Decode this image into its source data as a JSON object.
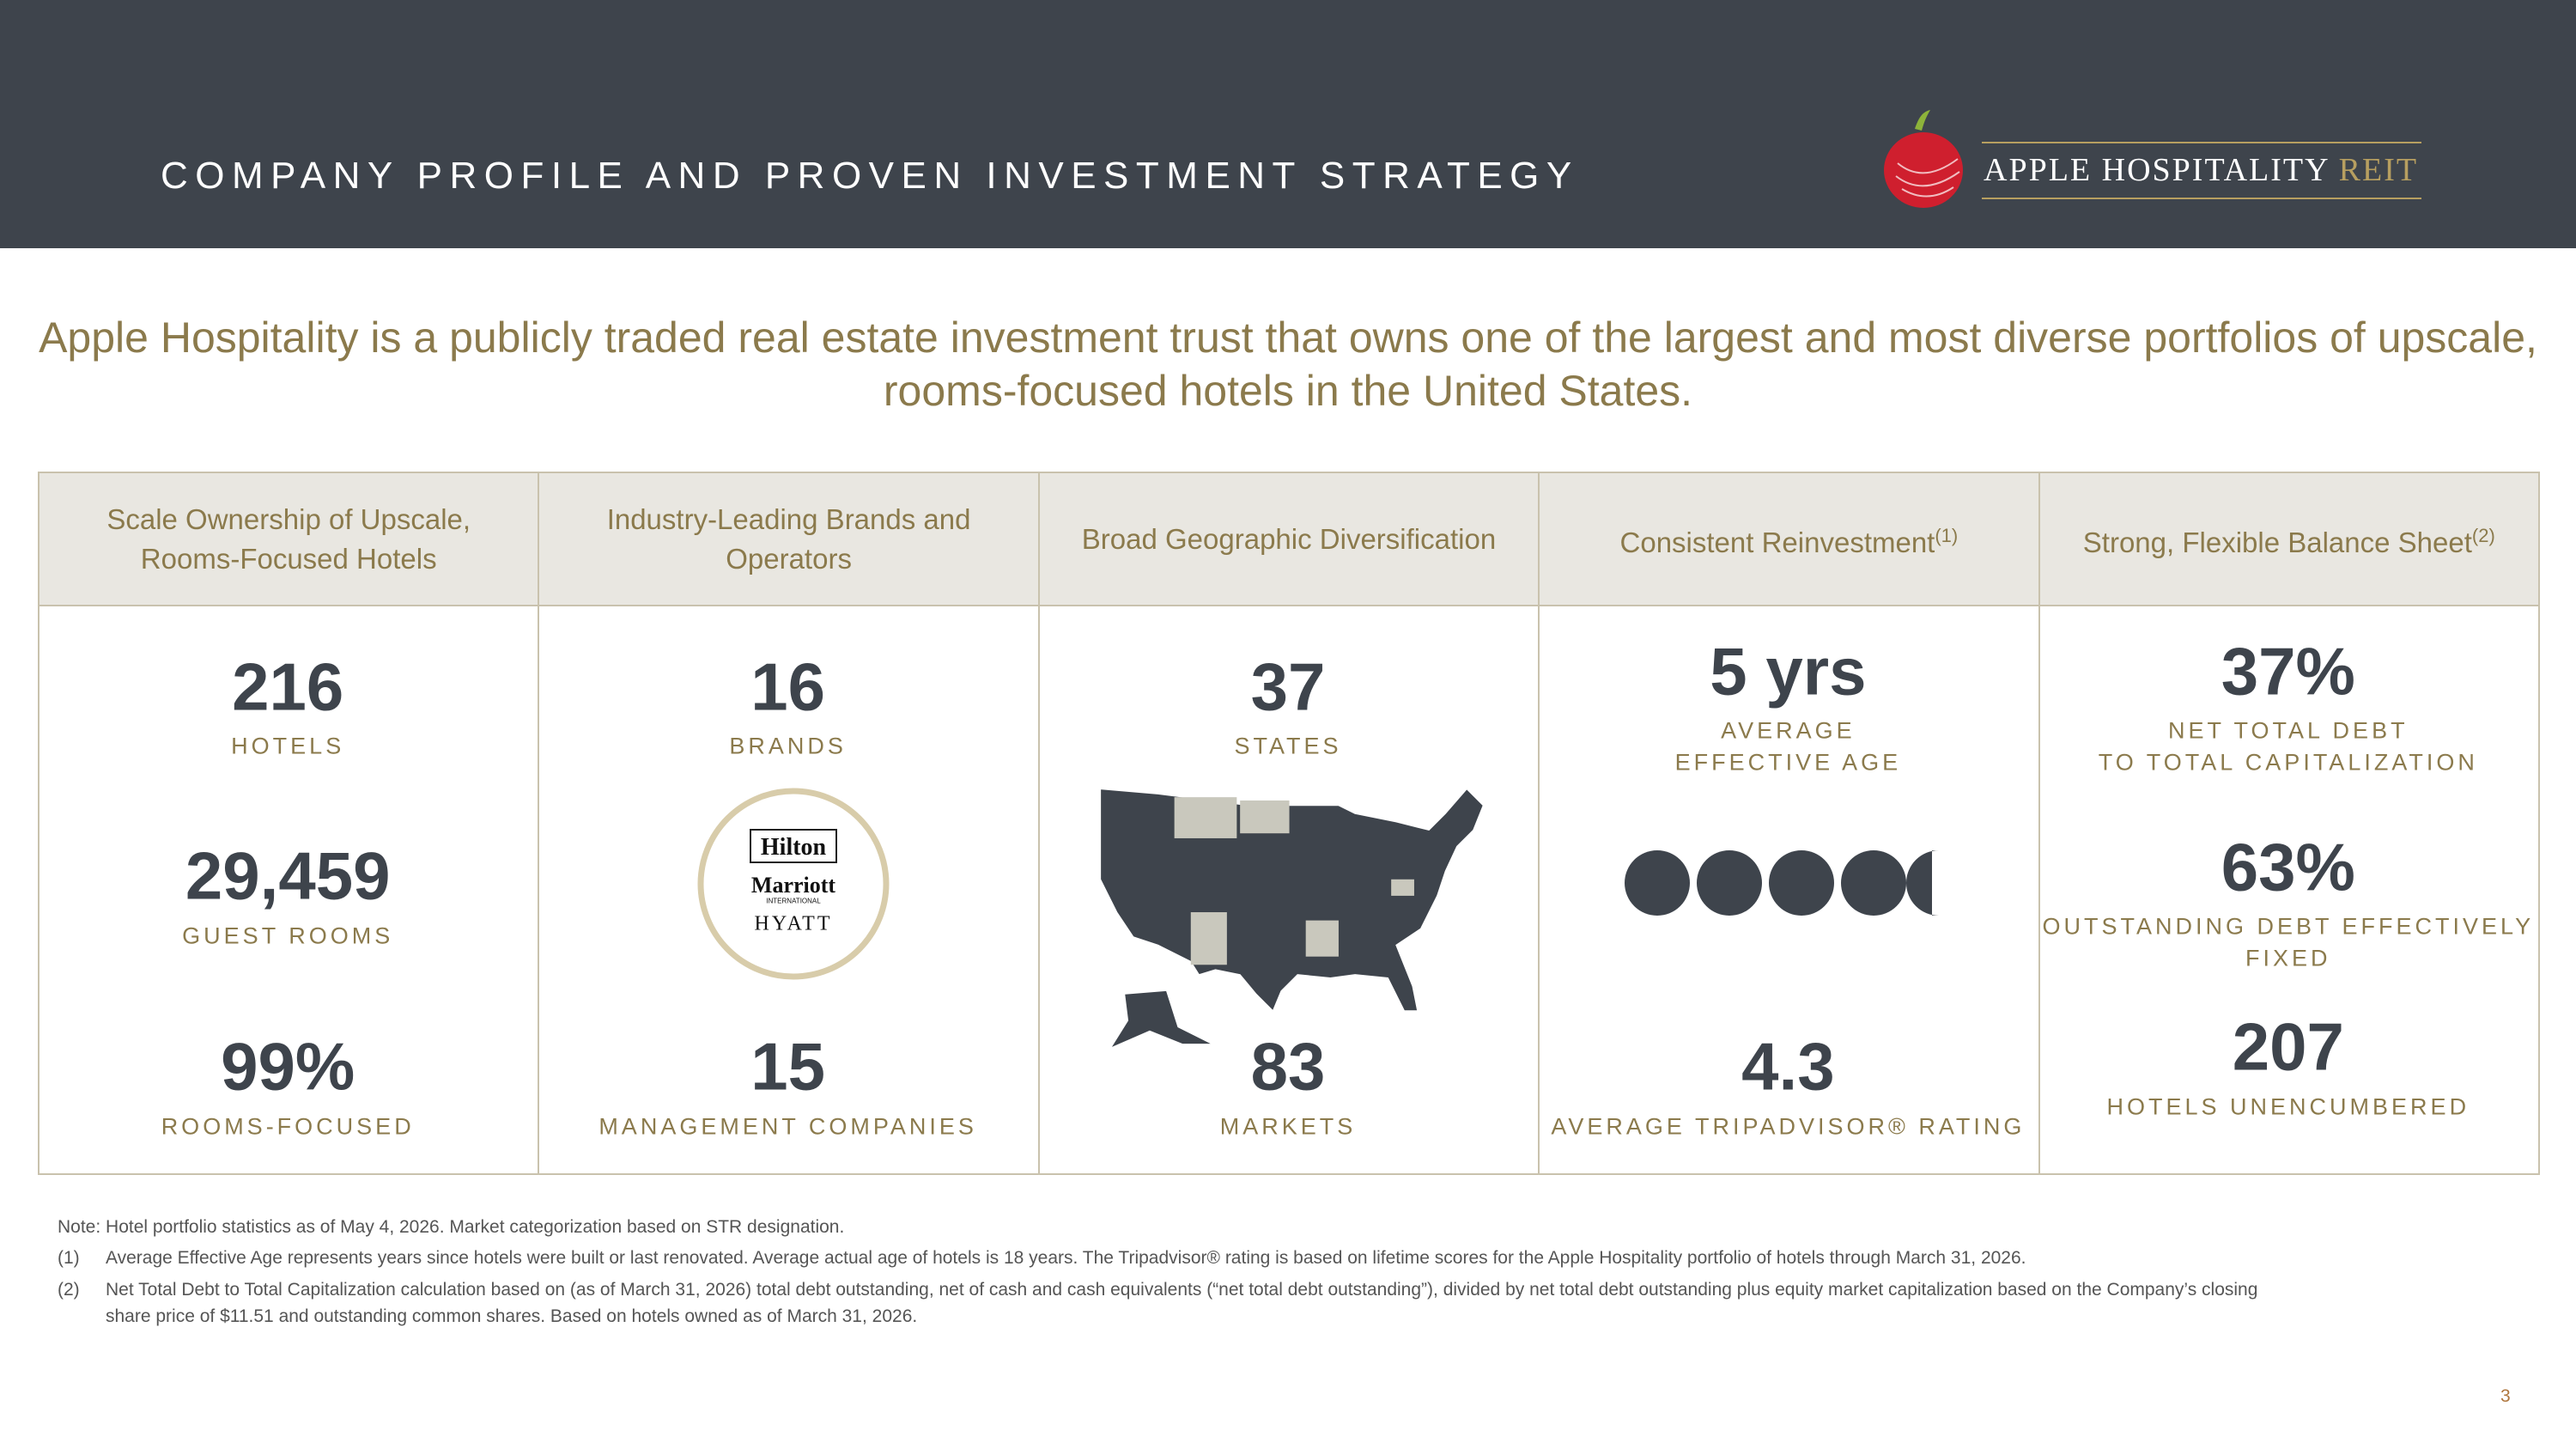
{
  "header": {
    "title": "COMPANY PROFILE AND PROVEN INVESTMENT STRATEGY",
    "logo": {
      "name": "APPLE HOSPITALITY",
      "suffix": "REIT"
    }
  },
  "intro": "Apple Hospitality is a publicly traded real estate investment trust that owns one of the largest and most diverse portfolios of upscale, rooms-focused hotels in the United States.",
  "table": {
    "columns": [
      {
        "heading": [
          "Scale Ownership of Upscale,",
          "Rooms-Focused Hotels"
        ],
        "stats": [
          {
            "value": "216",
            "label": [
              "HOTELS"
            ]
          },
          {
            "value": "29,459",
            "label": [
              "GUEST ROOMS"
            ]
          },
          {
            "value": "99%",
            "label": [
              "ROOMS-FOCUSED"
            ]
          }
        ]
      },
      {
        "heading": [
          "Industry-Leading Brands and",
          "Operators"
        ],
        "stats": [
          {
            "value": "16",
            "label": [
              "BRANDS"
            ]
          },
          {
            "value": "15",
            "label": [
              "MANAGEMENT COMPANIES"
            ]
          }
        ],
        "logos": [
          "Hilton",
          "Marriott",
          "INTERNATIONAL",
          "HYATT"
        ]
      },
      {
        "heading": [
          "Broad Geographic Diversification"
        ],
        "stats": [
          {
            "value": "37",
            "label": [
              "STATES"
            ]
          },
          {
            "value": "83",
            "label": [
              "MARKETS"
            ]
          }
        ]
      },
      {
        "heading": [
          "Consistent Reinvestment"
        ],
        "note": "(1)",
        "stats": [
          {
            "value": "5 yrs",
            "label": [
              "AVERAGE",
              "EFFECTIVE AGE"
            ]
          },
          {
            "value": "4.3",
            "label": [
              "AVERAGE TRIPADVISOR® RATING"
            ]
          }
        ]
      },
      {
        "heading": [
          "Strong, Flexible Balance Sheet"
        ],
        "note": "(2)",
        "stats": [
          {
            "value": "37%",
            "label": [
              "NET TOTAL DEBT",
              "TO TOTAL CAPITALIZATION"
            ]
          },
          {
            "value": "63%",
            "label": [
              "OUTSTANDING DEBT EFFECTIVELY",
              "FIXED"
            ]
          },
          {
            "value": "207",
            "label": [
              "HOTELS UNENCUMBERED"
            ]
          }
        ]
      }
    ]
  },
  "footnotes": {
    "note": "Note: Hotel portfolio statistics as of May 4, 2026. Market categorization based on STR designation.",
    "items": [
      {
        "marker": "(1)",
        "lines": [
          "Average Effective Age represents years since hotels were built or last renovated. Average actual age of hotels is 18 years. The Tripadvisor® rating is based on lifetime scores for the Apple Hospitality portfolio of hotels through March 31, 2026."
        ]
      },
      {
        "marker": "(2)",
        "lines": [
          "Net Total Debt to Total Capitalization calculation based on (as of March 31, 2026) total debt outstanding, net of cash and cash equivalents (“net total debt outstanding”), divided by net total debt outstanding plus equity market capitalization based on the Company’s closing",
          "share price of $11.51 and outstanding common shares. Based on hotels owned as of March 31, 2026."
        ]
      }
    ]
  },
  "page_number": "3"
}
